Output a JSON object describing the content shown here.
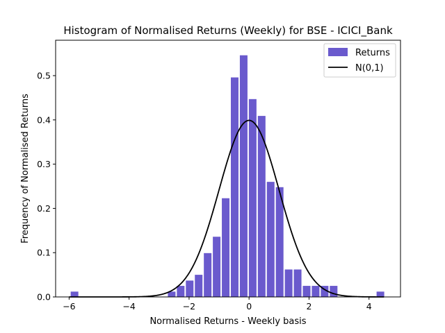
{
  "chart_data": {
    "type": "bar",
    "title": "Histogram of Normalised Returns (Weekly) for BSE - ICICI_Bank",
    "xlabel": "Normalised Returns - Weekly basis",
    "ylabel": "Frequency of Normalised Returns",
    "xlim": [
      -6.45,
      5.05
    ],
    "ylim": [
      0,
      0.58
    ],
    "xticks": [
      -6,
      -4,
      -2,
      0,
      2,
      4
    ],
    "xtick_labels": [
      "−6",
      "−4",
      "−2",
      "0",
      "2",
      "4"
    ],
    "yticks": [
      0.0,
      0.1,
      0.2,
      0.3,
      0.4,
      0.5
    ],
    "ytick_labels": [
      "0.0",
      "0.1",
      "0.2",
      "0.3",
      "0.4",
      "0.5"
    ],
    "bin_width": 0.3,
    "bar_fill_ratio": 0.85,
    "grid": false,
    "legend_position": "top-right",
    "series": [
      {
        "name": "Returns",
        "kind": "histogram",
        "color": "#6A5ACD",
        "bins": [
          {
            "x": -5.82,
            "y": 0.012
          },
          {
            "x": -2.58,
            "y": 0.012
          },
          {
            "x": -2.28,
            "y": 0.025
          },
          {
            "x": -1.98,
            "y": 0.037
          },
          {
            "x": -1.68,
            "y": 0.05
          },
          {
            "x": -1.38,
            "y": 0.099
          },
          {
            "x": -1.08,
            "y": 0.136
          },
          {
            "x": -0.78,
            "y": 0.223
          },
          {
            "x": -0.48,
            "y": 0.496
          },
          {
            "x": -0.18,
            "y": 0.546
          },
          {
            "x": 0.12,
            "y": 0.447
          },
          {
            "x": 0.42,
            "y": 0.409
          },
          {
            "x": 0.72,
            "y": 0.26
          },
          {
            "x": 1.02,
            "y": 0.248
          },
          {
            "x": 1.32,
            "y": 0.062
          },
          {
            "x": 1.62,
            "y": 0.062
          },
          {
            "x": 1.92,
            "y": 0.025
          },
          {
            "x": 2.22,
            "y": 0.025
          },
          {
            "x": 2.52,
            "y": 0.025
          },
          {
            "x": 2.82,
            "y": 0.025
          },
          {
            "x": 4.38,
            "y": 0.012
          }
        ]
      },
      {
        "name": "N(0,1)",
        "kind": "line",
        "color": "#000000",
        "function": "standard_normal_pdf",
        "x_range": [
          -6.0,
          4.5
        ]
      }
    ]
  }
}
